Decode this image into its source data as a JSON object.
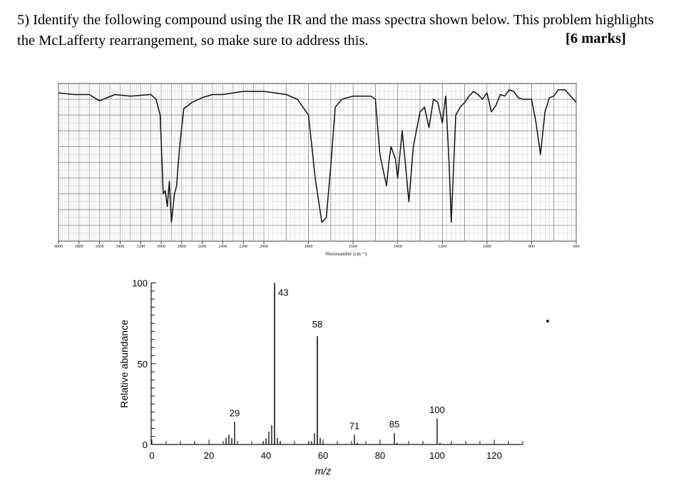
{
  "question": {
    "line1": "5) Identify the following compound using the IR and the mass spectra shown below. This problem highlights",
    "line2": "the McLafferty rearrangement, so make sure to address this.",
    "marks": "[6 marks]"
  },
  "chart_data": [
    {
      "type": "line",
      "chart_kind": "IR spectrum",
      "xlabel": "Wavenumber (cm⁻¹)",
      "ylabel": "",
      "x_direction": "decreasing",
      "xlim": [
        4000,
        600
      ],
      "ylim": [
        0,
        100
      ],
      "grid": true,
      "tick_labels": [
        "4000",
        "3800",
        "3600",
        "3400",
        "3200",
        "3000",
        "2800",
        "2600",
        "2400",
        "2200",
        "2000",
        "1800",
        "1600",
        "1400",
        "1200",
        "1000",
        "800",
        "600"
      ],
      "x": [
        4000,
        3850,
        3700,
        3600,
        3450,
        3300,
        3100,
        3050,
        3010,
        2980,
        2960,
        2940,
        2920,
        2900,
        2870,
        2850,
        2820,
        2780,
        2700,
        2600,
        2500,
        2400,
        2300,
        2200,
        2100,
        2000,
        1950,
        1900,
        1850,
        1800,
        1770,
        1740,
        1720,
        1700,
        1680,
        1650,
        1600,
        1560,
        1520,
        1500,
        1480,
        1465,
        1450,
        1440,
        1430,
        1410,
        1400,
        1390,
        1380,
        1365,
        1350,
        1330,
        1300,
        1280,
        1260,
        1240,
        1220,
        1200,
        1185,
        1170,
        1160,
        1140,
        1120,
        1100,
        1080,
        1060,
        1040,
        1020,
        1000,
        980,
        960,
        940,
        920,
        900,
        880,
        860,
        840,
        820,
        800,
        780,
        760,
        740,
        720,
        700,
        680,
        650,
        600
      ],
      "y": [
        94,
        93,
        93,
        89,
        93,
        92,
        93,
        90,
        80,
        30,
        32,
        22,
        38,
        12,
        30,
        35,
        60,
        84,
        88,
        91,
        93,
        93,
        94,
        95,
        95,
        95,
        94,
        93,
        90,
        80,
        40,
        12,
        15,
        48,
        85,
        90,
        92,
        92,
        92,
        90,
        55,
        45,
        35,
        50,
        60,
        52,
        40,
        55,
        70,
        48,
        25,
        60,
        82,
        85,
        72,
        90,
        88,
        75,
        92,
        50,
        12,
        80,
        85,
        88,
        92,
        95,
        93,
        90,
        94,
        82,
        86,
        93,
        92,
        96,
        95,
        91,
        90,
        90,
        90,
        75,
        55,
        82,
        91,
        92,
        96,
        96,
        88
      ]
    },
    {
      "type": "bar",
      "chart_kind": "mass spectrum",
      "xlabel": "m/z",
      "ylabel": "Relative abundance",
      "xlim": [
        0,
        130
      ],
      "ylim": [
        0,
        100
      ],
      "x_ticks": [
        0,
        20,
        40,
        60,
        80,
        100,
        120
      ],
      "y_ticks": [
        0,
        50,
        100
      ],
      "x": [
        15,
        26,
        27,
        28,
        29,
        39,
        40,
        41,
        42,
        43,
        44,
        45,
        55,
        56,
        57,
        58,
        59,
        60,
        71,
        72,
        85,
        86,
        100,
        101
      ],
      "values": [
        1,
        4,
        6,
        4,
        14,
        2,
        4,
        8,
        12,
        100,
        4,
        2,
        2,
        2,
        7,
        67,
        4,
        1,
        6,
        1,
        7,
        1,
        16,
        1
      ],
      "peak_labels": [
        "29",
        "43",
        "58",
        "71",
        "85",
        "100"
      ]
    }
  ]
}
